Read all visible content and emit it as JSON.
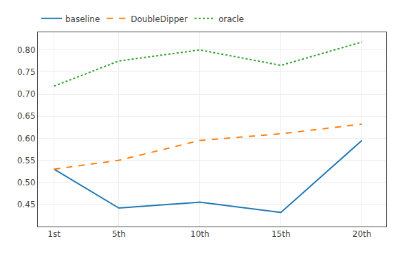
{
  "chart_data": {
    "type": "line",
    "x": [
      1,
      5,
      10,
      15,
      20
    ],
    "xlim": [
      0,
      21.5
    ],
    "xticks": [
      {
        "value": 1,
        "label": "1st"
      },
      {
        "value": 5,
        "label": "5th"
      },
      {
        "value": 10,
        "label": "10th"
      },
      {
        "value": 15,
        "label": "15th"
      },
      {
        "value": 20,
        "label": "20th"
      }
    ],
    "ylim": [
      0.4,
      0.84
    ],
    "yticks": [
      0.45,
      {
        "value": 0.5,
        "label": "0.50"
      },
      0.55,
      {
        "value": 0.6,
        "label": "0.60"
      },
      0.65,
      {
        "value": 0.7,
        "label": "0.70"
      },
      0.75,
      {
        "value": 0.8,
        "label": "0.80"
      }
    ],
    "grid": true,
    "legend": "top",
    "series": [
      {
        "name": "baseline",
        "color": "#1f77b4",
        "line_style": "solid",
        "values": [
          0.53,
          0.442,
          0.455,
          0.432,
          0.595
        ]
      },
      {
        "name": "DoubleDipper",
        "color": "#ff7f0e",
        "line_style": "dashed",
        "values": [
          0.53,
          0.55,
          0.595,
          0.61,
          0.632
        ]
      },
      {
        "name": "oracle",
        "color": "#2ca02c",
        "line_style": "dotted",
        "values": [
          0.718,
          0.775,
          0.8,
          0.765,
          0.818
        ]
      }
    ]
  }
}
